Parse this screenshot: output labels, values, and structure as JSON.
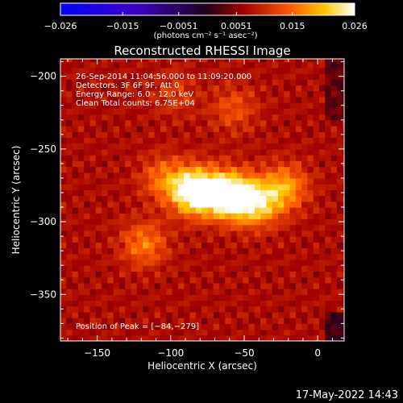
{
  "chart_data": {
    "type": "heatmap",
    "title": "Reconstructed RHESSI Image",
    "xlabel": "Heliocentric X (arcsec)",
    "ylabel": "Heliocentric Y (arcsec)",
    "xlim": [
      -175,
      18
    ],
    "ylim": [
      -382,
      -188
    ],
    "x_ticks": [
      -150,
      -100,
      -50,
      0
    ],
    "x_tick_labels": [
      "−150",
      "−100",
      "−50",
      "0"
    ],
    "y_ticks": [
      -200,
      -250,
      -300,
      -350
    ],
    "y_tick_labels": [
      "−200",
      "−250",
      "−300",
      "−350"
    ],
    "colorbar": {
      "range": [
        -0.026,
        0.026
      ],
      "ticks": [
        -0.026,
        -0.015,
        -0.0051,
        0.0051,
        0.015,
        0.026
      ],
      "tick_labels": [
        "−0.026",
        "−0.015",
        "−0.0051",
        "0.0051",
        "0.015",
        "0.026"
      ],
      "unit_label": "(photons cm⁻² s⁻¹ asec⁻²)"
    },
    "annotations": [
      "26-Sep-2014 11:04:56.000 to 11:09:20.000",
      "Detectors: 3F 6F 9F, Att 0",
      "Energy Range: 6.0 - 12.0 keV",
      "Clean     Total counts: 6.75E+04"
    ],
    "peak_position_text": "Position of Peak = [−84,−279]",
    "peak_position": [
      -84,
      -279
    ],
    "sources": [
      {
        "x": -84,
        "y": -279,
        "intensity": 0.026
      },
      {
        "x": -56,
        "y": -283,
        "intensity": 0.018
      },
      {
        "x": -40,
        "y": -287,
        "intensity": 0.017
      },
      {
        "x": -22,
        "y": -276,
        "intensity": 0.015
      },
      {
        "x": -65,
        "y": -280,
        "intensity": 0.016
      },
      {
        "x": -105,
        "y": -270,
        "intensity": 0.012
      },
      {
        "x": -118,
        "y": -315,
        "intensity": 0.013
      },
      {
        "x": -97,
        "y": -212,
        "intensity": 0.0082
      },
      {
        "x": -57,
        "y": -222,
        "intensity": 0.01
      }
    ],
    "timestamp": "17-May-2022 14:43"
  }
}
